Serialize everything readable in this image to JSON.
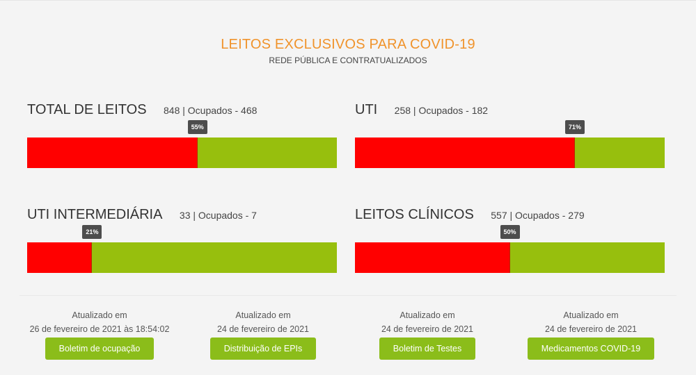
{
  "header": {
    "title": "LEITOS EXCLUSIVOS PARA COVID-19",
    "subtitle": "REDE PÚBLICA E CONTRATUALIZADOS"
  },
  "metrics": [
    {
      "name": "TOTAL DE LEITOS",
      "count": "848 | Ocupados - 468",
      "percent_label": "55%",
      "occupied_fraction": 0.55
    },
    {
      "name": "UTI",
      "count": "258 | Ocupados - 182",
      "percent_label": "71%",
      "occupied_fraction": 0.71
    },
    {
      "name": "UTI INTERMEDIÁRIA",
      "count": "33 | Ocupados - 7",
      "percent_label": "21%",
      "occupied_fraction": 0.21
    },
    {
      "name": "LEITOS CLÍNICOS",
      "count": "557 | Ocupados - 279",
      "percent_label": "50%",
      "occupied_fraction": 0.5
    }
  ],
  "updates": [
    {
      "label": "Atualizado em",
      "date": "26 de fevereiro de 2021 às 18:54:02",
      "button": "Boletim de ocupação"
    },
    {
      "label": "Atualizado em",
      "date": "24 de fevereiro de 2021",
      "button": "Distribuição de EPIs"
    },
    {
      "label": "Atualizado em",
      "date": "24 de fevereiro de 2021",
      "button": "Boletim de Testes"
    },
    {
      "label": "Atualizado em",
      "date": "24 de fevereiro de 2021",
      "button": "Medicamentos COVID-19"
    }
  ],
  "colors": {
    "title": "#f0932b",
    "occupied": "#ff0000",
    "free": "#97bf0d",
    "button": "#8bbd1a",
    "tag": "#4d4d4d"
  }
}
